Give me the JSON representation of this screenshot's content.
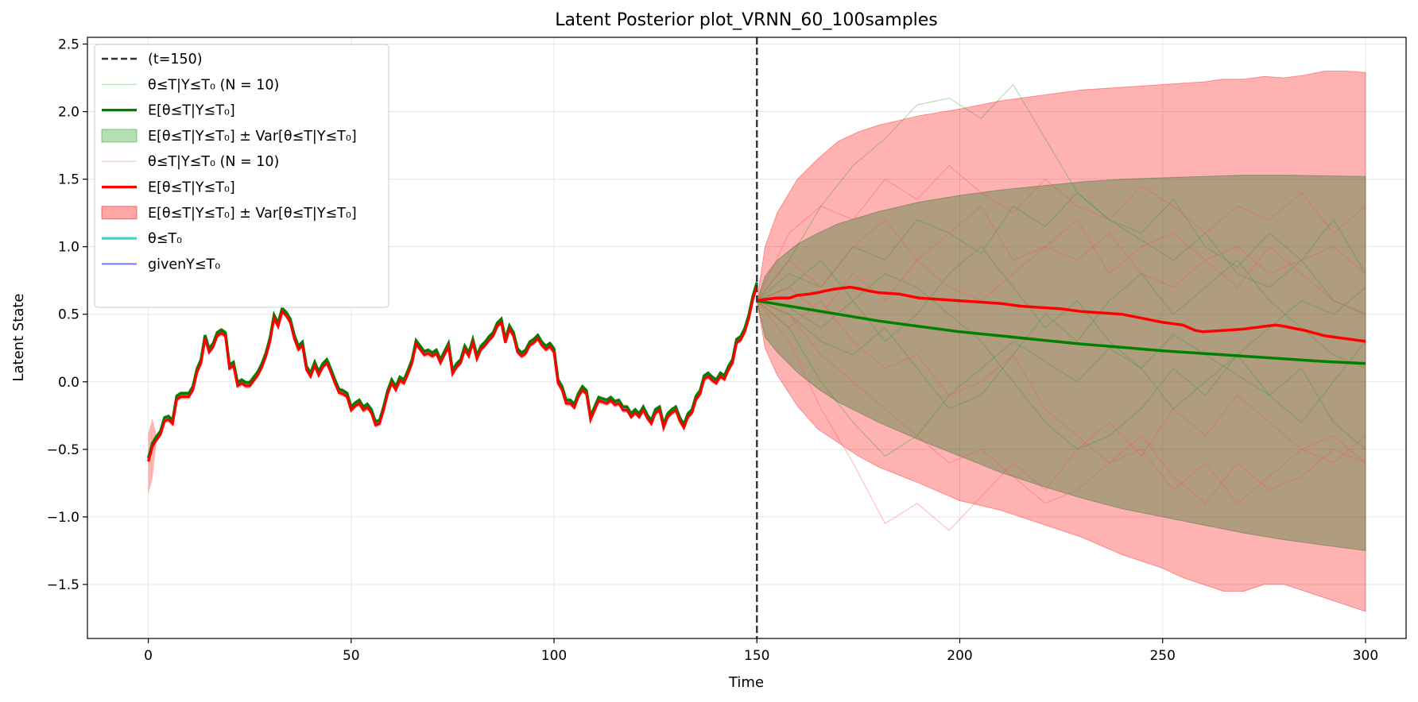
{
  "chart_data": {
    "type": "line",
    "title": "Latent Posterior plot_VRNN_60_100samples",
    "xlabel": "Time",
    "ylabel": "Latent State",
    "xlim": [
      -15,
      310
    ],
    "ylim": [
      -1.9,
      2.55
    ],
    "x_ticks": [
      0,
      50,
      100,
      150,
      200,
      250,
      300
    ],
    "y_ticks": [
      -1.5,
      -1.0,
      -0.5,
      0.0,
      0.5,
      1.0,
      1.5,
      2.0,
      2.5
    ],
    "x_tick_labels": [
      "0",
      "50",
      "100",
      "150",
      "200",
      "250",
      "300"
    ],
    "y_tick_labels": [
      "−1.5",
      "−1.0",
      "−0.5",
      "0.0",
      "0.5",
      "1.0",
      "1.5",
      "2.0",
      "2.5"
    ],
    "grid": true,
    "legend_position": "top-left",
    "vline": {
      "x": 150,
      "label": "(t=150)",
      "color": "#333333"
    },
    "legend": [
      {
        "kind": "dash",
        "color": "#333333",
        "text": "(t=150)"
      },
      {
        "kind": "thin",
        "color": "#2ca02c",
        "text": "θ≤T|Y≤T₀ (N = 10)"
      },
      {
        "kind": "thick",
        "color": "#008000",
        "text": "E[θ≤T|Y≤T₀]"
      },
      {
        "kind": "patch",
        "color": "#2ca02c",
        "text": "E[θ≤T|Y≤T₀] ± Var[θ≤T|Y≤T₀]"
      },
      {
        "kind": "thin",
        "color": "#ff4d4d",
        "text": "θ≤T|Y≤T₀ (N = 10)"
      },
      {
        "kind": "thick",
        "color": "#ff0000",
        "text": "E[θ≤T|Y≤T₀]"
      },
      {
        "kind": "patch",
        "color": "#ff0000",
        "text": "E[θ≤T|Y≤T₀] ± Var[θ≤T|Y≤T₀]"
      },
      {
        "kind": "thick",
        "color": "#40d0d0",
        "text": "θ≤T₀"
      },
      {
        "kind": "medium",
        "color": "#7777ff",
        "text": "givenY≤T₀"
      }
    ],
    "observed": {
      "x": [
        0,
        1,
        2,
        3,
        4,
        5,
        6,
        7,
        8,
        9,
        10,
        11,
        12,
        13,
        14,
        15,
        16,
        17,
        18,
        19,
        20,
        21,
        22,
        23,
        24,
        25,
        26,
        27,
        28,
        29,
        30,
        31,
        32,
        33,
        34,
        35,
        36,
        37,
        38,
        39,
        40,
        41,
        42,
        43,
        44,
        45,
        46,
        47,
        48,
        49,
        50,
        51,
        52,
        53,
        54,
        55,
        56,
        57,
        58,
        59,
        60,
        61,
        62,
        63,
        64,
        65,
        66,
        67,
        68,
        69,
        70,
        71,
        72,
        73,
        74,
        75,
        76,
        77,
        78,
        79,
        80,
        81,
        82,
        83,
        84,
        85,
        86,
        87,
        88,
        89,
        90,
        91,
        92,
        93,
        94,
        95,
        96,
        97,
        98,
        99,
        100,
        101,
        102,
        103,
        104,
        105,
        106,
        107,
        108,
        109,
        110,
        111,
        112,
        113,
        114,
        115,
        116,
        117,
        118,
        119,
        120,
        121,
        122,
        123,
        124,
        125,
        126,
        127,
        128,
        129,
        130,
        131,
        132,
        133,
        134,
        135,
        136,
        137,
        138,
        139,
        140,
        141,
        142,
        143,
        144,
        145,
        146,
        147,
        148,
        149,
        150
      ],
      "y": [
        -0.58,
        -0.47,
        -0.42,
        -0.38,
        -0.28,
        -0.27,
        -0.3,
        -0.12,
        -0.1,
        -0.1,
        -0.1,
        -0.05,
        0.08,
        0.15,
        0.33,
        0.23,
        0.27,
        0.35,
        0.37,
        0.35,
        0.11,
        0.13,
        -0.02,
        0.0,
        -0.02,
        -0.02,
        0.02,
        0.06,
        0.12,
        0.2,
        0.31,
        0.48,
        0.42,
        0.53,
        0.5,
        0.45,
        0.33,
        0.25,
        0.28,
        0.1,
        0.05,
        0.13,
        0.06,
        0.12,
        0.15,
        0.08,
        0.0,
        -0.07,
        -0.08,
        -0.1,
        -0.2,
        -0.17,
        -0.15,
        -0.2,
        -0.18,
        -0.22,
        -0.31,
        -0.3,
        -0.2,
        -0.08,
        0.0,
        -0.05,
        0.02,
        0.0,
        0.07,
        0.15,
        0.29,
        0.25,
        0.21,
        0.22,
        0.2,
        0.22,
        0.15,
        0.21,
        0.27,
        0.07,
        0.12,
        0.15,
        0.25,
        0.2,
        0.3,
        0.18,
        0.25,
        0.28,
        0.32,
        0.35,
        0.42,
        0.45,
        0.3,
        0.4,
        0.35,
        0.23,
        0.2,
        0.22,
        0.28,
        0.3,
        0.33,
        0.28,
        0.25,
        0.27,
        0.23,
        0.0,
        -0.05,
        -0.15,
        -0.15,
        -0.18,
        -0.1,
        -0.05,
        -0.08,
        -0.27,
        -0.2,
        -0.13,
        -0.14,
        -0.15,
        -0.13,
        -0.16,
        -0.15,
        -0.2,
        -0.2,
        -0.25,
        -0.22,
        -0.25,
        -0.2,
        -0.26,
        -0.3,
        -0.22,
        -0.2,
        -0.33,
        -0.25,
        -0.22,
        -0.2,
        -0.28,
        -0.33,
        -0.25,
        -0.22,
        -0.12,
        -0.08,
        0.03,
        0.05,
        0.02,
        0.0,
        0.05,
        0.03,
        0.1,
        0.15,
        0.3,
        0.32,
        0.38,
        0.48,
        0.62,
        0.72
      ]
    },
    "green_mean": {
      "x": [
        150,
        160,
        170,
        180,
        190,
        200,
        210,
        220,
        230,
        240,
        250,
        260,
        270,
        280,
        290,
        300
      ],
      "y": [
        0.6,
        0.55,
        0.5,
        0.45,
        0.41,
        0.37,
        0.34,
        0.31,
        0.28,
        0.255,
        0.23,
        0.21,
        0.19,
        0.17,
        0.15,
        0.135
      ]
    },
    "green_band": {
      "x": [
        150,
        152,
        155,
        160,
        165,
        170,
        180,
        190,
        200,
        210,
        220,
        230,
        240,
        250,
        260,
        270,
        280,
        290,
        300
      ],
      "upper": [
        0.6,
        0.78,
        0.9,
        1.02,
        1.1,
        1.17,
        1.26,
        1.33,
        1.38,
        1.42,
        1.45,
        1.48,
        1.5,
        1.51,
        1.52,
        1.53,
        1.53,
        1.525,
        1.52
      ],
      "lower": [
        0.6,
        0.33,
        0.22,
        0.07,
        -0.05,
        -0.15,
        -0.3,
        -0.43,
        -0.55,
        -0.67,
        -0.77,
        -0.86,
        -0.94,
        -1.0,
        -1.06,
        -1.12,
        -1.17,
        -1.21,
        -1.25
      ]
    },
    "red_mean": {
      "x": [
        150,
        152,
        155,
        158,
        160,
        163,
        165,
        168,
        170,
        173,
        175,
        178,
        180,
        185,
        190,
        195,
        200,
        205,
        210,
        215,
        220,
        225,
        230,
        235,
        240,
        245,
        250,
        255,
        258,
        260,
        265,
        270,
        275,
        278,
        280,
        285,
        290,
        295,
        300
      ],
      "y": [
        0.6,
        0.61,
        0.62,
        0.62,
        0.64,
        0.65,
        0.66,
        0.68,
        0.69,
        0.7,
        0.69,
        0.67,
        0.66,
        0.65,
        0.62,
        0.61,
        0.6,
        0.59,
        0.58,
        0.56,
        0.55,
        0.54,
        0.52,
        0.51,
        0.5,
        0.47,
        0.44,
        0.42,
        0.38,
        0.37,
        0.38,
        0.39,
        0.41,
        0.42,
        0.41,
        0.38,
        0.34,
        0.32,
        0.3
      ]
    },
    "red_band": {
      "x": [
        150,
        152,
        155,
        160,
        165,
        170,
        175,
        180,
        190,
        200,
        210,
        220,
        230,
        240,
        250,
        255,
        260,
        265,
        270,
        275,
        280,
        285,
        290,
        295,
        300
      ],
      "upper": [
        0.6,
        1.0,
        1.25,
        1.5,
        1.65,
        1.78,
        1.85,
        1.9,
        1.97,
        2.02,
        2.08,
        2.12,
        2.16,
        2.18,
        2.2,
        2.21,
        2.22,
        2.24,
        2.24,
        2.26,
        2.25,
        2.27,
        2.3,
        2.3,
        2.29
      ],
      "lower": [
        0.6,
        0.25,
        0.05,
        -0.18,
        -0.35,
        -0.45,
        -0.55,
        -0.63,
        -0.75,
        -0.88,
        -0.95,
        -1.05,
        -1.15,
        -1.28,
        -1.38,
        -1.45,
        -1.5,
        -1.55,
        -1.55,
        -1.5,
        -1.5,
        -1.55,
        -1.6,
        -1.65,
        -1.7
      ]
    },
    "green_samples": [
      [
        0.6,
        0.9,
        1.3,
        1.6,
        1.8,
        2.05,
        2.1,
        1.95,
        2.2,
        1.8,
        1.4,
        1.2,
        1.05,
        0.9,
        1.1,
        0.8,
        0.7,
        0.9,
        0.6,
        0.5
      ],
      [
        0.6,
        0.4,
        0.0,
        -0.3,
        -0.55,
        -0.4,
        -0.1,
        0.1,
        0.3,
        0.15,
        0.0,
        0.25,
        0.1,
        0.35,
        0.2,
        0.05,
        -0.1,
        0.1,
        -0.3,
        -0.5
      ],
      [
        0.6,
        0.8,
        0.7,
        1.0,
        0.9,
        1.2,
        1.1,
        0.95,
        1.3,
        1.15,
        1.4,
        1.2,
        1.1,
        1.35,
        1.0,
        0.85,
        1.1,
        0.9,
        1.2,
        0.8
      ],
      [
        0.6,
        0.5,
        0.3,
        0.2,
        0.4,
        0.1,
        -0.2,
        -0.1,
        0.2,
        0.5,
        0.3,
        0.6,
        0.8,
        0.5,
        0.7,
        0.9,
        0.6,
        0.4,
        0.2,
        0.1
      ],
      [
        0.6,
        0.7,
        0.9,
        0.6,
        0.3,
        0.5,
        0.8,
        1.0,
        0.7,
        0.4,
        0.6,
        0.3,
        0.1,
        -0.2,
        0.0,
        0.2,
        -0.1,
        -0.3,
        0.0,
        0.3
      ],
      [
        0.6,
        0.55,
        0.4,
        0.6,
        0.8,
        0.7,
        0.5,
        0.3,
        0.0,
        -0.3,
        -0.5,
        -0.4,
        -0.2,
        0.1,
        -0.1,
        0.2,
        0.4,
        0.6,
        0.5,
        0.7
      ]
    ],
    "red_samples": [
      [
        0.6,
        0.3,
        -0.2,
        -0.6,
        -1.05,
        -0.9,
        -1.1,
        -0.85,
        -0.6,
        -0.8,
        -0.5,
        -0.3,
        -0.55,
        -0.2,
        -0.4,
        -0.1,
        -0.3,
        -0.5,
        -0.4,
        -0.6
      ],
      [
        0.6,
        1.1,
        1.3,
        1.2,
        1.5,
        1.35,
        1.6,
        1.4,
        1.25,
        1.5,
        1.3,
        1.2,
        1.45,
        1.3,
        1.1,
        1.3,
        1.2,
        1.4,
        1.1,
        1.3
      ],
      [
        0.6,
        0.9,
        0.7,
        1.0,
        1.2,
        0.9,
        1.1,
        1.3,
        0.9,
        1.0,
        1.2,
        0.8,
        1.0,
        1.1,
        0.9,
        0.7,
        1.0,
        0.8,
        0.6,
        0.5
      ],
      [
        0.6,
        0.4,
        0.6,
        0.3,
        0.1,
        0.2,
        -0.1,
        0.0,
        0.2,
        -0.2,
        -0.4,
        -0.6,
        -0.5,
        -0.8,
        -0.6,
        -0.9,
        -0.7,
        -0.5,
        -0.6,
        -0.4
      ],
      [
        0.6,
        0.7,
        0.5,
        0.8,
        0.6,
        0.9,
        0.7,
        0.6,
        0.8,
        1.0,
        0.9,
        1.1,
        0.8,
        0.7,
        0.9,
        1.0,
        0.8,
        0.9,
        1.0,
        0.8
      ],
      [
        0.6,
        0.5,
        0.2,
        0.0,
        -0.2,
        -0.4,
        -0.6,
        -0.5,
        -0.7,
        -0.9,
        -0.8,
        -0.6,
        -0.4,
        -0.7,
        -0.9,
        -0.6,
        -0.8,
        -0.7,
        -0.5,
        -0.6
      ]
    ],
    "colors": {
      "green_line": "#008000",
      "green_fill": "#2ca02c",
      "red_line": "#ff0000",
      "red_fill": "#ff0000",
      "cyan": "#40d0d0",
      "blue": "#7777ff",
      "vline": "#333333",
      "grid": "#e6e6e6"
    }
  }
}
